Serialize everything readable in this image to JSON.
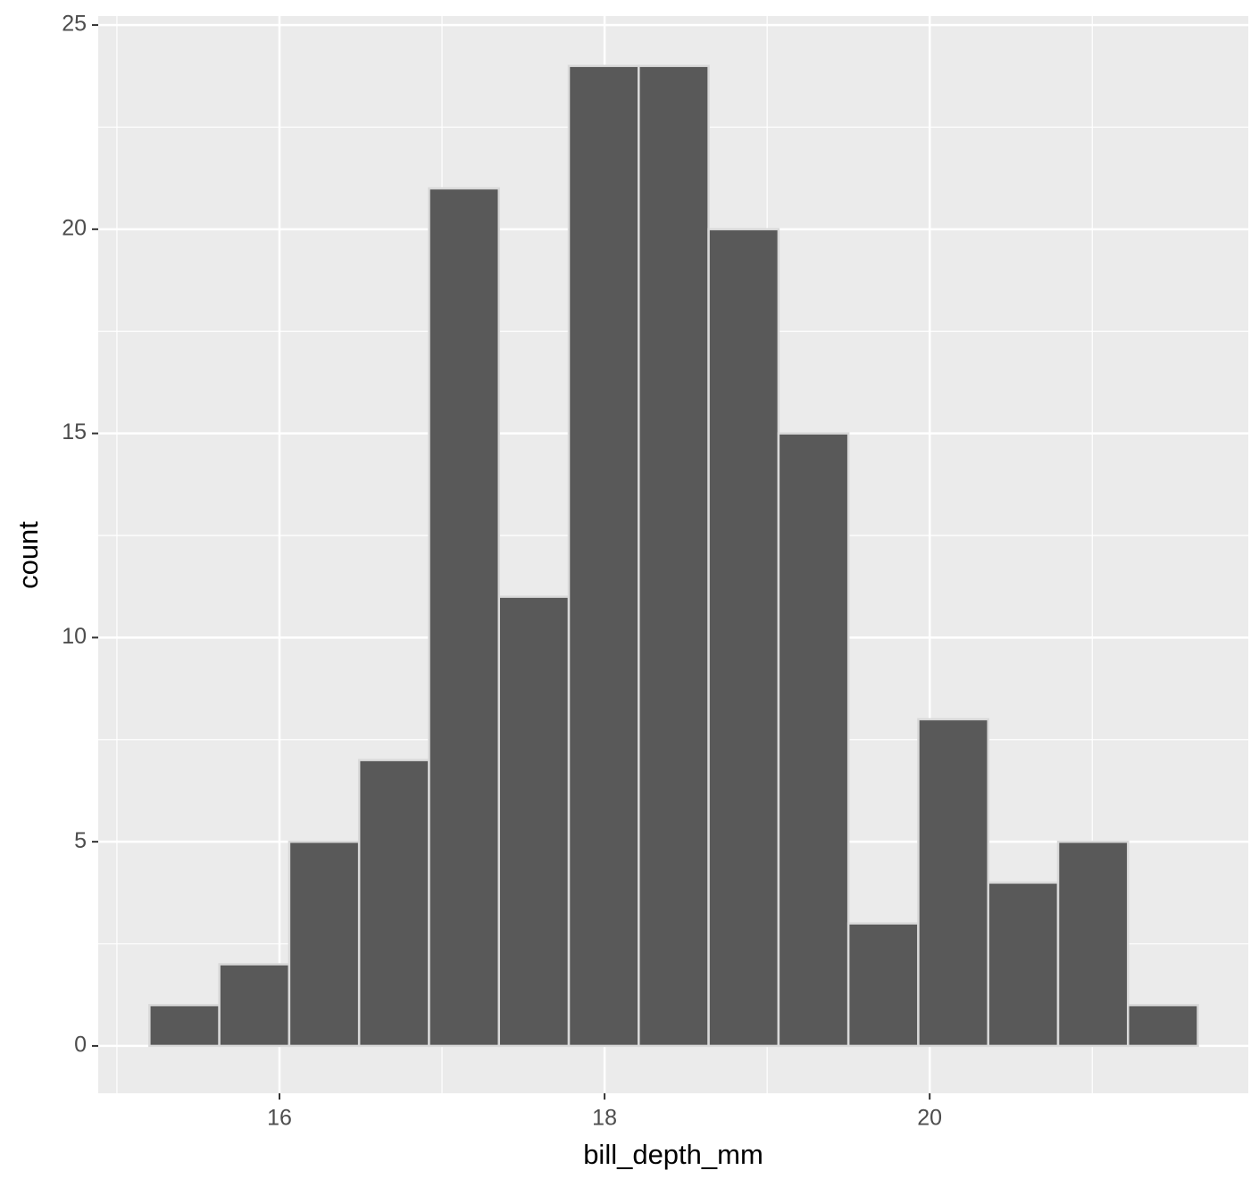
{
  "chart_data": {
    "type": "histogram",
    "x_label": "bill_depth_mm",
    "y_label": "count",
    "bins": [
      15.2,
      15.63,
      16.06,
      16.49,
      16.92,
      17.35,
      17.78,
      18.21,
      18.64,
      19.07,
      19.5,
      19.93,
      20.36,
      20.79,
      21.22,
      21.65
    ],
    "values": [
      1,
      2,
      5,
      7,
      21,
      11,
      24,
      24,
      20,
      15,
      3,
      8,
      4,
      5,
      1
    ],
    "color": "#595959",
    "edge_color": "#d9d9d9",
    "xlim": [
      14.885,
      21.96
    ],
    "ylim": [
      -1.16,
      25.22
    ],
    "xticks": [
      16,
      18,
      20
    ],
    "yticks": [
      0,
      5,
      10,
      15,
      20,
      25
    ],
    "xminor": [
      15,
      17,
      19,
      21
    ],
    "yminor": [
      2.5,
      7.5,
      12.5,
      17.5,
      22.5
    ],
    "grid": true
  }
}
